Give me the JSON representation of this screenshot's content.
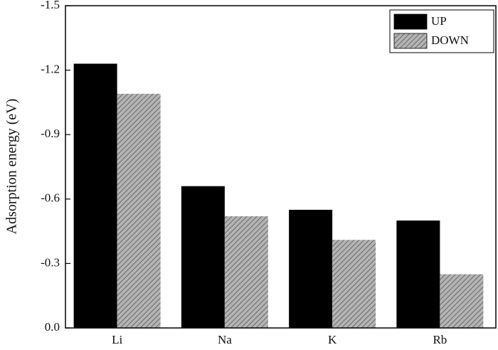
{
  "chart_data": {
    "type": "bar",
    "y_label": "Adsorption energy (eV)",
    "categories": [
      "Li",
      "Na",
      "K",
      "Rb"
    ],
    "series": [
      {
        "name": "UP",
        "color": "#000000",
        "values": [
          -1.23,
          -0.66,
          -0.55,
          -0.5
        ]
      },
      {
        "name": "DOWN",
        "color": "#b4b4b4",
        "values": [
          -1.09,
          -0.52,
          -0.41,
          -0.25
        ]
      }
    ],
    "ylim": [
      0,
      -1.5
    ],
    "yticks": [
      {
        "value": 0,
        "label": "0.0"
      },
      -0.3,
      -0.6,
      -0.9,
      -1.2,
      -1.5
    ],
    "legend": "upper right"
  }
}
